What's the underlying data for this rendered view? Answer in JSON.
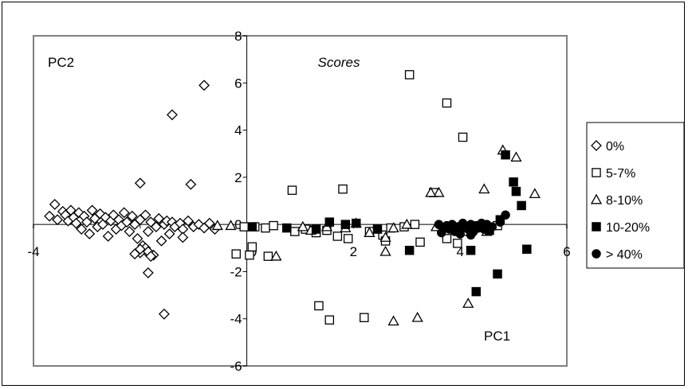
{
  "chart_data": {
    "type": "scatter",
    "title": "Scores",
    "xlabel": "PC1",
    "ylabel": "PC2",
    "xlim": [
      -4,
      6
    ],
    "ylim": [
      -6,
      8
    ],
    "x_ticks": [
      "-4",
      "2",
      "4",
      "6"
    ],
    "y_ticks": [
      "8",
      "6",
      "4",
      "2",
      "0",
      "-2",
      "-4",
      "-6"
    ],
    "x_ticks_partial": [
      "0",
      "0"
    ],
    "legend_position": "right",
    "grid": false,
    "series": [
      {
        "name": "0%",
        "marker": "diamond-open",
        "points": [
          [
            -0.8,
            5.9
          ],
          [
            -1.4,
            4.65
          ],
          [
            -1.05,
            1.7
          ],
          [
            -2.0,
            1.75
          ],
          [
            -3.6,
            0.85
          ],
          [
            -3.7,
            0.35
          ],
          [
            -3.55,
            0.2
          ],
          [
            -3.45,
            0.55
          ],
          [
            -3.4,
            0.4
          ],
          [
            -3.35,
            0.15
          ],
          [
            -3.3,
            0.6
          ],
          [
            -3.25,
            0.3
          ],
          [
            -3.2,
            0.05
          ],
          [
            -3.15,
            0.5
          ],
          [
            -3.1,
            -0.2
          ],
          [
            -3.05,
            0.35
          ],
          [
            -3.0,
            0.1
          ],
          [
            -2.95,
            -0.4
          ],
          [
            -2.9,
            0.6
          ],
          [
            -2.85,
            0.25
          ],
          [
            -2.8,
            -0.1
          ],
          [
            -2.75,
            0.45
          ],
          [
            -2.7,
            0.0
          ],
          [
            -2.65,
            0.3
          ],
          [
            -2.6,
            -0.5
          ],
          [
            -2.55,
            0.15
          ],
          [
            -2.5,
            0.4
          ],
          [
            -2.45,
            -0.2
          ],
          [
            -2.4,
            0.2
          ],
          [
            -2.35,
            -0.05
          ],
          [
            -2.3,
            0.5
          ],
          [
            -2.25,
            0.1
          ],
          [
            -2.2,
            -0.3
          ],
          [
            -2.15,
            0.35
          ],
          [
            -2.1,
            0.0
          ],
          [
            -2.05,
            -0.6
          ],
          [
            -2.0,
            0.2
          ],
          [
            -1.95,
            -0.9
          ],
          [
            -1.9,
            0.4
          ],
          [
            -1.85,
            -0.3
          ],
          [
            -1.8,
            0.1
          ],
          [
            -1.75,
            -1.3
          ],
          [
            -1.7,
            -0.1
          ],
          [
            -1.65,
            0.25
          ],
          [
            -1.6,
            -0.7
          ],
          [
            -1.55,
            0.0
          ],
          [
            -1.5,
            0.15
          ],
          [
            -1.45,
            -0.4
          ],
          [
            -1.4,
            0.1
          ],
          [
            -1.35,
            -0.1
          ],
          [
            -1.25,
            0.05
          ],
          [
            -1.2,
            -0.2
          ],
          [
            -1.1,
            0.15
          ],
          [
            -1.0,
            -0.1
          ],
          [
            -0.9,
            0.0
          ],
          [
            -0.8,
            -0.15
          ],
          [
            -0.7,
            0.05
          ],
          [
            -0.6,
            -0.2
          ],
          [
            -2.0,
            -1.2
          ],
          [
            -1.9,
            -1.0
          ],
          [
            -1.85,
            -1.15
          ],
          [
            -1.8,
            -1.35
          ],
          [
            -1.85,
            -2.05
          ],
          [
            -1.2,
            -0.55
          ],
          [
            -1.55,
            -3.8
          ],
          [
            -2.1,
            -1.25
          ],
          [
            -2.0,
            -1.05
          ]
        ]
      },
      {
        "name": "5-7%",
        "marker": "square-open",
        "points": [
          [
            3.05,
            6.35
          ],
          [
            3.75,
            5.15
          ],
          [
            4.05,
            3.7
          ],
          [
            1.8,
            1.5
          ],
          [
            0.85,
            1.45
          ],
          [
            -0.05,
            -0.1
          ],
          [
            0.15,
            -0.1
          ],
          [
            0.35,
            -0.15
          ],
          [
            0.05,
            -1.3
          ],
          [
            -0.2,
            -1.25
          ],
          [
            0.4,
            -1.35
          ],
          [
            0.5,
            -0.05
          ],
          [
            1.1,
            -0.2
          ],
          [
            1.3,
            -0.35
          ],
          [
            1.5,
            -0.25
          ],
          [
            1.7,
            -0.5
          ],
          [
            1.9,
            -0.6
          ],
          [
            2.3,
            -0.3
          ],
          [
            2.55,
            -0.45
          ],
          [
            2.95,
            -0.1
          ],
          [
            3.25,
            -0.75
          ],
          [
            3.75,
            -0.6
          ],
          [
            3.95,
            -0.8
          ],
          [
            4.2,
            -0.3
          ],
          [
            4.45,
            -0.1
          ],
          [
            4.7,
            -0.05
          ],
          [
            0.1,
            -0.95
          ],
          [
            1.35,
            -3.45
          ],
          [
            1.55,
            -4.05
          ],
          [
            2.2,
            -3.95
          ],
          [
            2.6,
            -0.7
          ],
          [
            3.5,
            1.35
          ],
          [
            3.15,
            0.0
          ],
          [
            0.9,
            -0.3
          ],
          [
            2.7,
            -0.15
          ]
        ]
      },
      {
        "name": "8-10%",
        "marker": "triangle-open",
        "points": [
          [
            4.8,
            3.15
          ],
          [
            5.05,
            2.85
          ],
          [
            5.4,
            1.3
          ],
          [
            4.45,
            1.5
          ],
          [
            3.6,
            1.35
          ],
          [
            3.45,
            1.35
          ],
          [
            4.1,
            -0.3
          ],
          [
            0.55,
            -1.35
          ],
          [
            1.2,
            -0.25
          ],
          [
            1.5,
            -0.1
          ],
          [
            1.85,
            -0.15
          ],
          [
            2.05,
            0.05
          ],
          [
            2.3,
            -0.35
          ],
          [
            2.6,
            -1.15
          ],
          [
            2.75,
            -0.15
          ],
          [
            3.0,
            0.0
          ],
          [
            3.55,
            -0.1
          ],
          [
            4.5,
            -0.3
          ],
          [
            2.6,
            -0.55
          ],
          [
            4.15,
            -3.35
          ],
          [
            3.2,
            -3.95
          ],
          [
            2.75,
            -4.1
          ],
          [
            -0.3,
            -0.05
          ],
          [
            -0.55,
            -0.05
          ],
          [
            1.05,
            -0.1
          ]
        ]
      },
      {
        "name": "10-20%",
        "marker": "square-filled",
        "points": [
          [
            4.85,
            2.95
          ],
          [
            5.0,
            1.8
          ],
          [
            5.05,
            1.4
          ],
          [
            5.15,
            0.8
          ],
          [
            4.75,
            0.2
          ],
          [
            5.25,
            -1.05
          ],
          [
            4.7,
            -2.1
          ],
          [
            4.3,
            -2.85
          ],
          [
            4.2,
            -1.1
          ],
          [
            3.05,
            -1.1
          ],
          [
            1.55,
            0.1
          ],
          [
            1.85,
            0.0
          ],
          [
            2.05,
            0.05
          ],
          [
            2.45,
            -0.2
          ],
          [
            0.75,
            -0.15
          ],
          [
            0.1,
            -0.1
          ],
          [
            4.35,
            -0.1
          ],
          [
            4.55,
            -0.25
          ],
          [
            1.3,
            -0.2
          ]
        ]
      },
      {
        "name": "> 40%",
        "marker": "circle-filled",
        "points": [
          [
            4.85,
            0.4
          ],
          [
            4.75,
            0.1
          ],
          [
            4.6,
            -0.1
          ],
          [
            4.5,
            0.0
          ],
          [
            4.45,
            -0.2
          ],
          [
            4.4,
            0.05
          ],
          [
            4.35,
            -0.15
          ],
          [
            4.3,
            -0.05
          ],
          [
            4.25,
            -0.3
          ],
          [
            4.2,
            0.0
          ],
          [
            4.15,
            -0.2
          ],
          [
            4.1,
            -0.1
          ],
          [
            4.05,
            0.05
          ],
          [
            4.0,
            -0.25
          ],
          [
            3.95,
            -0.1
          ],
          [
            3.9,
            -0.3
          ],
          [
            3.85,
            0.0
          ],
          [
            3.8,
            -0.2
          ],
          [
            3.75,
            -0.05
          ],
          [
            3.7,
            -0.15
          ],
          [
            3.65,
            -0.35
          ],
          [
            3.6,
            0.0
          ],
          [
            4.0,
            -0.4
          ],
          [
            4.2,
            -0.45
          ]
        ]
      }
    ]
  }
}
